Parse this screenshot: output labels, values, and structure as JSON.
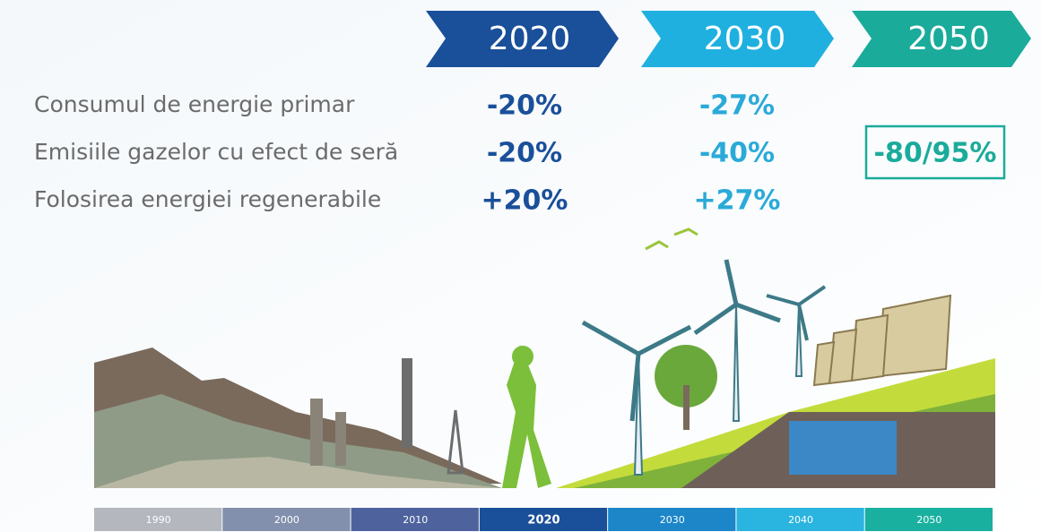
{
  "header": {
    "years": [
      "2020",
      "2030",
      "2050"
    ]
  },
  "rows": [
    {
      "label": "Consumul de energie primar",
      "values": [
        "-20%",
        "-27%"
      ]
    },
    {
      "label": "Emisiile gazelor cu efect de seră",
      "values": [
        "-20%",
        "-40%",
        "-80/95%"
      ]
    },
    {
      "label": "Folosirea energiei regenerabile",
      "values": [
        "+20%",
        "+27%"
      ]
    }
  ],
  "timeline": [
    "1990",
    "2000",
    "2010",
    "2020",
    "2030",
    "2040",
    "2050"
  ]
}
